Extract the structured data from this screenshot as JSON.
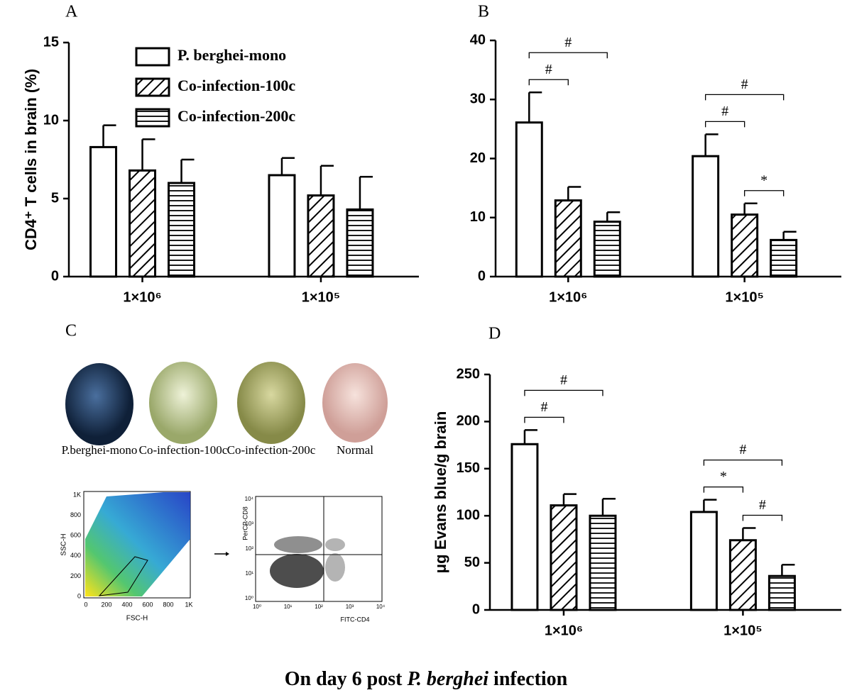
{
  "chart_data": [
    {
      "type": "bar",
      "panel": "A",
      "ylabel": "CD4⁺ T cells in brain (%)",
      "categories": [
        "1×10⁶",
        "1×10⁵"
      ],
      "series": [
        {
          "name": "P. berghei-mono",
          "pattern": "none",
          "color": "#000000",
          "values": [
            8.3,
            6.5
          ],
          "errors": [
            1.4,
            1.1
          ]
        },
        {
          "name": "Co-infection-100c",
          "pattern": "diagonal",
          "color": "#000000",
          "values": [
            6.8,
            5.2
          ],
          "errors": [
            2.0,
            1.9
          ]
        },
        {
          "name": "Co-infection-200c",
          "pattern": "horizontal",
          "color": "#000000",
          "values": [
            6.0,
            4.3
          ],
          "errors": [
            1.5,
            2.1
          ]
        }
      ],
      "ylim": [
        0,
        15
      ],
      "yticks": [
        0,
        5,
        10,
        15
      ],
      "legend": "top-left"
    },
    {
      "type": "bar",
      "panel": "B",
      "categories": [
        "1×10⁶",
        "1×10⁵"
      ],
      "series": [
        {
          "pattern": "none",
          "color": "#000000",
          "values": [
            26.1,
            20.4
          ],
          "errors": [
            5.1,
            3.7
          ]
        },
        {
          "pattern": "diagonal",
          "color": "#000000",
          "values": [
            12.9,
            10.5
          ],
          "errors": [
            2.3,
            1.9
          ]
        },
        {
          "pattern": "horizontal",
          "color": "#000000",
          "values": [
            9.3,
            6.2
          ],
          "errors": [
            1.6,
            1.4
          ]
        }
      ],
      "ylim": [
        0,
        40
      ],
      "yticks": [
        0,
        10,
        20,
        30,
        40
      ],
      "annotations": [
        {
          "category": 0,
          "bars": [
            0,
            1
          ],
          "text": "#"
        },
        {
          "category": 0,
          "bars": [
            0,
            2
          ],
          "text": "#"
        },
        {
          "category": 1,
          "bars": [
            0,
            1
          ],
          "text": "#"
        },
        {
          "category": 1,
          "bars": [
            0,
            2
          ],
          "text": "#"
        },
        {
          "category": 1,
          "bars": [
            1,
            2
          ],
          "text": "*"
        }
      ]
    },
    {
      "type": "bar",
      "panel": "D",
      "ylabel": "μg Evans blue/g brain",
      "categories": [
        "1×10⁶",
        "1×10⁵"
      ],
      "series": [
        {
          "pattern": "none",
          "color": "#000000",
          "values": [
            176,
            104
          ],
          "errors": [
            15,
            13
          ]
        },
        {
          "pattern": "diagonal",
          "color": "#000000",
          "values": [
            111,
            74
          ],
          "errors": [
            12,
            13
          ]
        },
        {
          "pattern": "horizontal",
          "color": "#000000",
          "values": [
            100,
            36
          ],
          "errors": [
            18,
            12
          ]
        }
      ],
      "ylim": [
        0,
        250
      ],
      "yticks": [
        0,
        50,
        100,
        150,
        200,
        250
      ],
      "annotations": [
        {
          "category": 0,
          "bars": [
            0,
            1
          ],
          "text": "#"
        },
        {
          "category": 0,
          "bars": [
            0,
            2
          ],
          "text": "#"
        },
        {
          "category": 1,
          "bars": [
            0,
            1
          ],
          "text": "*"
        },
        {
          "category": 1,
          "bars": [
            0,
            2
          ],
          "text": "#"
        },
        {
          "category": 1,
          "bars": [
            1,
            2
          ],
          "text": "#"
        }
      ]
    }
  ],
  "panel_c": {
    "label": "C",
    "brains": [
      "P.berghei-mono",
      "Co-infection-100c",
      "Co-infection-200c",
      "Normal"
    ],
    "scatter_left": {
      "ylabel": "SSC-H",
      "xlabel": "FSC-H",
      "yticks": [
        "1K",
        "800",
        "600",
        "400",
        "200",
        "0"
      ],
      "xticks": [
        "0",
        "200",
        "400",
        "600",
        "800",
        "1K"
      ]
    },
    "scatter_right": {
      "ylabel": "PerCP-CD8",
      "xlabel": "FITC-CD4",
      "yticks": [
        "10⁴",
        "10³",
        "10²",
        "10¹",
        "10⁰"
      ],
      "xticks": [
        "10⁰",
        "10¹",
        "10²",
        "10³",
        "10⁴"
      ]
    }
  },
  "footer": [
    "On day 6 post ",
    "P. berghei",
    " infection"
  ]
}
